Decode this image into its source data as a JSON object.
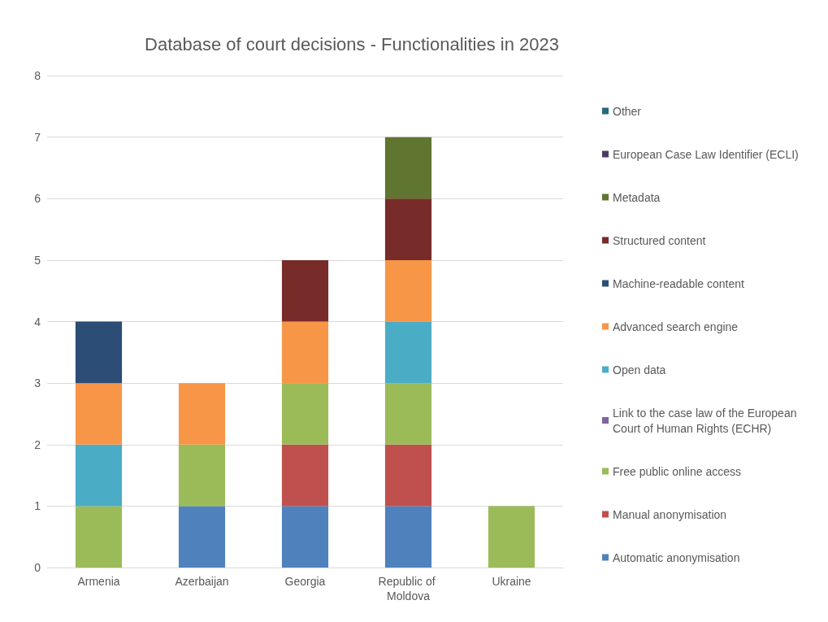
{
  "chart_data": {
    "type": "bar",
    "title": "Database of court decisions - Functionalities in 2023",
    "stacked": true,
    "categories": [
      "Armenia",
      "Azerbaijan",
      "Georgia",
      "Republic of Moldova",
      "Ukraine"
    ],
    "series": [
      {
        "name": "Automatic anonymisation",
        "color": "#4f81bd",
        "values": [
          0,
          1,
          1,
          1,
          0
        ]
      },
      {
        "name": "Manual anonymisation",
        "color": "#c0504d",
        "values": [
          0,
          0,
          1,
          1,
          0
        ]
      },
      {
        "name": "Free public online access",
        "color": "#9bbb59",
        "values": [
          1,
          1,
          1,
          1,
          1
        ]
      },
      {
        "name": "Link to the case law of the European Court of Human Rights (ECHR)",
        "color": "#8064a2",
        "values": [
          0,
          0,
          0,
          0,
          0
        ]
      },
      {
        "name": "Open data",
        "color": "#4bacc6",
        "values": [
          1,
          0,
          0,
          1,
          0
        ]
      },
      {
        "name": "Advanced search engine",
        "color": "#f79646",
        "values": [
          1,
          1,
          1,
          1,
          0
        ]
      },
      {
        "name": "Machine-readable content",
        "color": "#2c4d75",
        "values": [
          1,
          0,
          0,
          0,
          0
        ]
      },
      {
        "name": "Structured content",
        "color": "#772c2a",
        "values": [
          0,
          0,
          1,
          1,
          0
        ]
      },
      {
        "name": "Metadata",
        "color": "#5f7530",
        "values": [
          0,
          0,
          0,
          1,
          0
        ]
      },
      {
        "name": "European Case Law Identifier (ECLI)",
        "color": "#4d3b62",
        "values": [
          0,
          0,
          0,
          0,
          0
        ]
      },
      {
        "name": "Other",
        "color": "#276a7c",
        "values": [
          0,
          0,
          0,
          0,
          0
        ]
      }
    ],
    "ylim": [
      0,
      8
    ],
    "yticks": [
      0,
      1,
      2,
      3,
      4,
      5,
      6,
      7,
      8
    ],
    "grid": "y",
    "legend": "right"
  }
}
